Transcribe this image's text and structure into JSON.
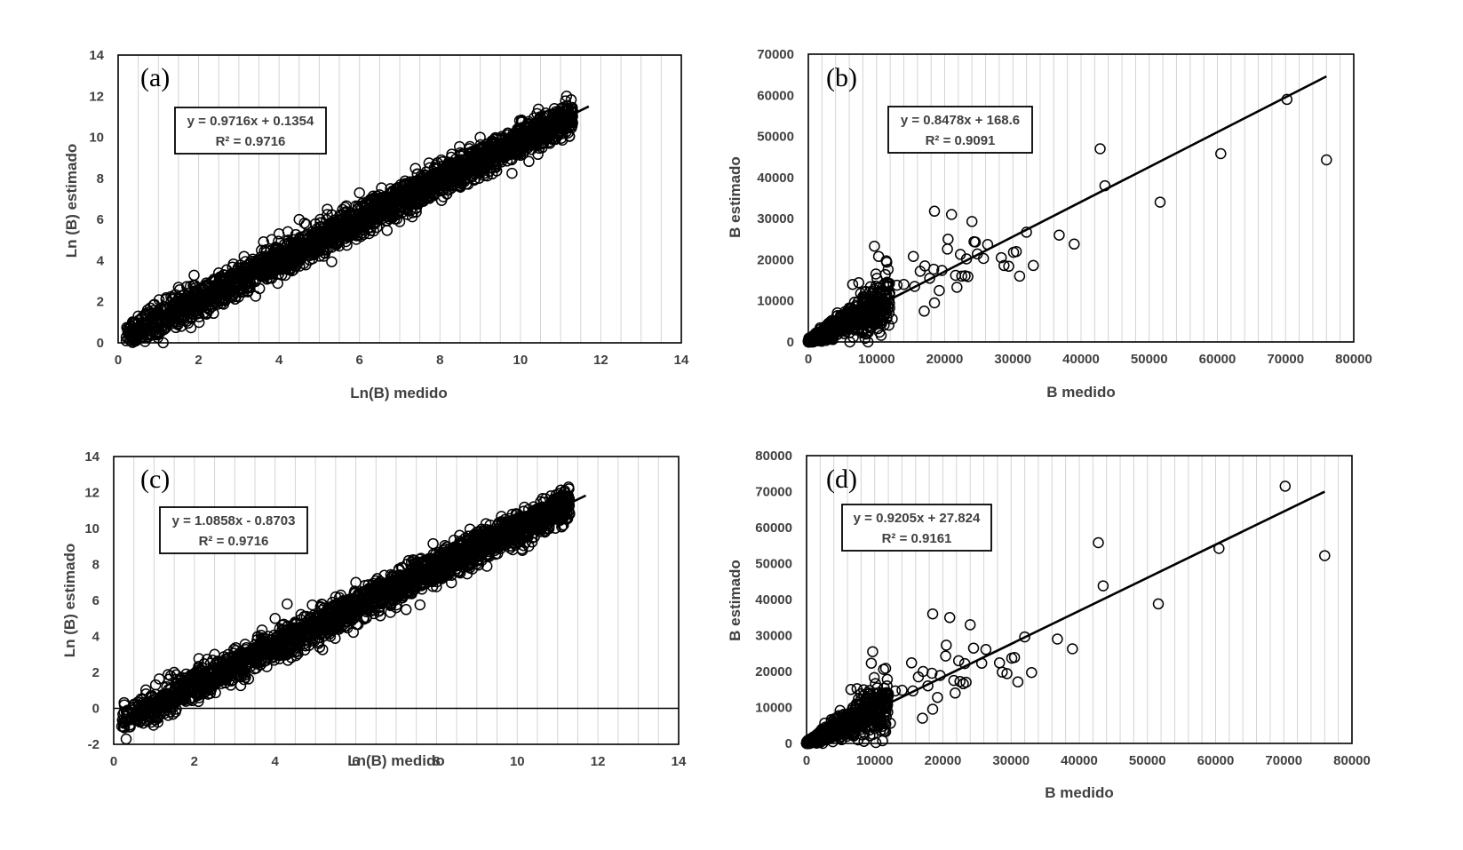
{
  "chart_data": [
    {
      "id": "a",
      "type": "scatter",
      "panel_label": "(a)",
      "xlabel": "Ln(B) medido",
      "ylabel": "Ln (B) estimado",
      "xlim": [
        0,
        14
      ],
      "ylim": [
        0,
        14
      ],
      "xticks": [
        0,
        2,
        4,
        6,
        8,
        10,
        12,
        14
      ],
      "yticks": [
        0,
        2,
        4,
        6,
        8,
        10,
        12,
        14
      ],
      "x_minor_grid_step": 0.5,
      "equation": "y = 0.9716x + 0.1354",
      "r2": "R² = 0.9716",
      "trendline": {
        "slope": 0.9716,
        "intercept": 0.1354,
        "x_range": [
          0.2,
          11.7
        ]
      },
      "scatter": {
        "kind": "log_dense",
        "n": 2600,
        "x_range": [
          0.2,
          11.3
        ],
        "spread": 0.4
      },
      "points": [
        [
          0.2,
          0.1
        ],
        [
          0.3,
          0.5
        ],
        [
          0.4,
          1.0
        ],
        [
          0.5,
          1.3
        ],
        [
          0.8,
          1.7
        ],
        [
          1.0,
          0.4
        ],
        [
          1.5,
          2.7
        ],
        [
          2.5,
          3.4
        ],
        [
          4.0,
          5.3
        ],
        [
          4.5,
          6.0
        ],
        [
          5.2,
          6.5
        ],
        [
          6.0,
          7.3
        ],
        [
          6.5,
          7.2
        ],
        [
          7.0,
          5.9
        ],
        [
          8.2,
          8.5
        ],
        [
          9.0,
          10.0
        ],
        [
          9.5,
          9.4
        ],
        [
          10.2,
          10.3
        ],
        [
          10.5,
          10.0
        ],
        [
          11.0,
          10.7
        ],
        [
          11.2,
          10.8
        ]
      ]
    },
    {
      "id": "b",
      "type": "scatter",
      "panel_label": "(b)",
      "xlabel": "B medido",
      "ylabel": "B estimado",
      "xlim": [
        0,
        80000
      ],
      "ylim": [
        0,
        70000
      ],
      "xticks": [
        0,
        10000,
        20000,
        30000,
        40000,
        50000,
        60000,
        70000,
        80000
      ],
      "yticks": [
        0,
        10000,
        20000,
        30000,
        40000,
        50000,
        60000,
        70000
      ],
      "x_minor_grid_step": 2000,
      "equation": "y = 0.8478x + 168.6",
      "r2": "R² = 0.9091",
      "trendline": {
        "slope": 0.8478,
        "intercept": 168.6,
        "x_range": [
          0,
          76000
        ]
      },
      "scatter": {
        "kind": "linear_dense",
        "n": 700,
        "x_max": 12000,
        "slope": 0.8478,
        "intercept": 168.6,
        "spread": 0.35
      },
      "points": [
        [
          70200,
          59000
        ],
        [
          42800,
          47000
        ],
        [
          60500,
          45800
        ],
        [
          76000,
          44300
        ],
        [
          43500,
          38000
        ],
        [
          51600,
          34000
        ],
        [
          18500,
          31800
        ],
        [
          21000,
          31000
        ],
        [
          24000,
          29300
        ],
        [
          32000,
          26700
        ],
        [
          36800,
          26000
        ],
        [
          39000,
          23800
        ],
        [
          9700,
          23300
        ],
        [
          26300,
          23700
        ],
        [
          20500,
          25000
        ],
        [
          24500,
          24300
        ],
        [
          24300,
          24400
        ],
        [
          15400,
          20800
        ],
        [
          17100,
          18500
        ],
        [
          18400,
          17700
        ],
        [
          19600,
          17400
        ],
        [
          22300,
          21300
        ],
        [
          23200,
          20200
        ],
        [
          25700,
          20300
        ],
        [
          28300,
          20500
        ],
        [
          28700,
          18600
        ],
        [
          29400,
          18400
        ],
        [
          30100,
          21800
        ],
        [
          30500,
          22000
        ],
        [
          31000,
          16000
        ],
        [
          33000,
          18600
        ],
        [
          10300,
          20800
        ],
        [
          11500,
          19400
        ],
        [
          12300,
          5600
        ],
        [
          17000,
          7500
        ],
        [
          18500,
          9500
        ],
        [
          19200,
          12500
        ],
        [
          21600,
          16200
        ],
        [
          22500,
          16000
        ],
        [
          23000,
          16100
        ],
        [
          23400,
          15900
        ],
        [
          24800,
          21400
        ],
        [
          20400,
          22600
        ],
        [
          16400,
          17200
        ],
        [
          17800,
          15500
        ],
        [
          21800,
          13300
        ],
        [
          14000,
          14000
        ],
        [
          13000,
          13800
        ],
        [
          11900,
          11900
        ],
        [
          9000,
          12200
        ],
        [
          6500,
          14000
        ],
        [
          7400,
          14400
        ],
        [
          8400,
          12300
        ],
        [
          15600,
          13500
        ],
        [
          10800,
          10000
        ]
      ]
    },
    {
      "id": "c",
      "type": "scatter",
      "panel_label": "(c)",
      "xlabel": "Ln(B) medido",
      "ylabel": "Ln (B) estimado",
      "xlim": [
        0,
        14
      ],
      "ylim": [
        -2,
        14
      ],
      "xticks": [
        0,
        2,
        4,
        6,
        8,
        10,
        12,
        14
      ],
      "yticks": [
        -2,
        0,
        2,
        4,
        6,
        8,
        10,
        12,
        14
      ],
      "x_minor_grid_step": 0.5,
      "equation": "y = 1.0858x - 0.8703",
      "r2": "R² = 0.9716",
      "trendline": {
        "slope": 1.0858,
        "intercept": -0.8703,
        "x_range": [
          0.2,
          11.7
        ]
      },
      "scatter": {
        "kind": "log_dense",
        "n": 2600,
        "x_range": [
          0.2,
          11.3
        ],
        "spread": 0.45
      },
      "points": [
        [
          0.2,
          -1.0
        ],
        [
          0.3,
          -0.6
        ],
        [
          0.5,
          0.2
        ],
        [
          0.8,
          0.8
        ],
        [
          1.0,
          -0.5
        ],
        [
          1.5,
          2.0
        ],
        [
          2.5,
          3.0
        ],
        [
          4.0,
          5.0
        ],
        [
          4.3,
          5.8
        ],
        [
          5.5,
          6.2
        ],
        [
          6.0,
          7.0
        ],
        [
          7.0,
          5.6
        ],
        [
          8.0,
          7.2
        ],
        [
          9.0,
          9.8
        ],
        [
          9.5,
          9.8
        ],
        [
          10.0,
          10.5
        ],
        [
          10.5,
          10.0
        ],
        [
          11.0,
          10.9
        ],
        [
          11.2,
          11.1
        ],
        [
          11.3,
          10.8
        ]
      ]
    },
    {
      "id": "d",
      "type": "scatter",
      "panel_label": "(d)",
      "xlabel": "B medido",
      "ylabel": "B estimado",
      "xlim": [
        0,
        80000
      ],
      "ylim": [
        0,
        80000
      ],
      "xticks": [
        0,
        10000,
        20000,
        30000,
        40000,
        50000,
        60000,
        70000,
        80000
      ],
      "yticks": [
        0,
        10000,
        20000,
        30000,
        40000,
        50000,
        60000,
        70000,
        80000
      ],
      "x_minor_grid_step": 2000,
      "equation": "y = 0.9205x + 27.824",
      "r2": "R² = 0.9161",
      "trendline": {
        "slope": 0.9205,
        "intercept": 27.824,
        "x_range": [
          0,
          76000
        ]
      },
      "scatter": {
        "kind": "linear_dense",
        "n": 700,
        "x_max": 12000,
        "slope": 0.9205,
        "intercept": 27.824,
        "spread": 0.35
      },
      "points": [
        [
          70200,
          71500
        ],
        [
          42800,
          55800
        ],
        [
          60500,
          54200
        ],
        [
          76000,
          52200
        ],
        [
          43500,
          43800
        ],
        [
          51600,
          38800
        ],
        [
          18500,
          36000
        ],
        [
          21000,
          35000
        ],
        [
          24000,
          33000
        ],
        [
          32000,
          29600
        ],
        [
          36800,
          29000
        ],
        [
          39000,
          26300
        ],
        [
          9700,
          25500
        ],
        [
          26300,
          26100
        ],
        [
          20500,
          27300
        ],
        [
          24500,
          26500
        ],
        [
          9500,
          22300
        ],
        [
          11300,
          20600
        ],
        [
          15400,
          22400
        ],
        [
          17100,
          20000
        ],
        [
          18400,
          19500
        ],
        [
          19600,
          18900
        ],
        [
          22300,
          23000
        ],
        [
          23200,
          22200
        ],
        [
          25700,
          22300
        ],
        [
          28300,
          22400
        ],
        [
          28700,
          19800
        ],
        [
          29400,
          19400
        ],
        [
          30100,
          23700
        ],
        [
          30500,
          23900
        ],
        [
          31000,
          17100
        ],
        [
          33000,
          19700
        ],
        [
          12300,
          5600
        ],
        [
          17000,
          7000
        ],
        [
          18500,
          9500
        ],
        [
          19200,
          12800
        ],
        [
          21600,
          17500
        ],
        [
          22500,
          17200
        ],
        [
          23000,
          16600
        ],
        [
          23400,
          17000
        ],
        [
          20400,
          24300
        ],
        [
          16400,
          18500
        ],
        [
          17800,
          16000
        ],
        [
          21800,
          14000
        ],
        [
          14000,
          14800
        ],
        [
          13000,
          14600
        ],
        [
          11900,
          12400
        ],
        [
          9000,
          12800
        ],
        [
          6500,
          15000
        ],
        [
          7400,
          15200
        ],
        [
          8400,
          13300
        ],
        [
          15600,
          14600
        ],
        [
          10800,
          10800
        ],
        [
          11800,
          16000
        ]
      ]
    }
  ]
}
